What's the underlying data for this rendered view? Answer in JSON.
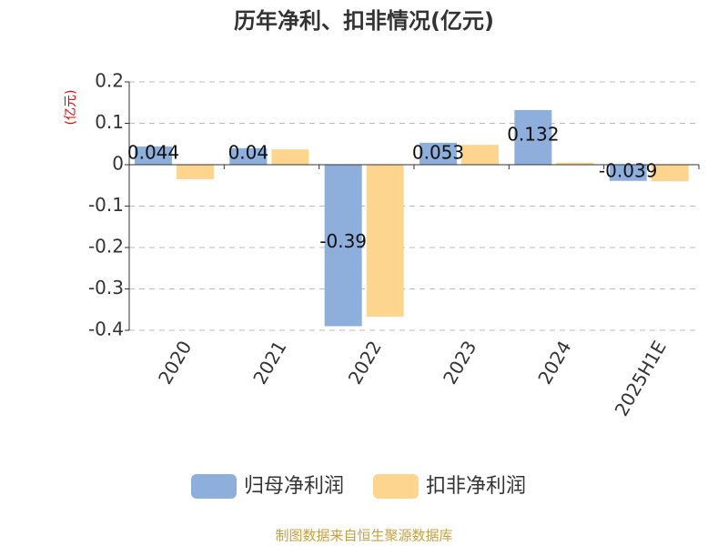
{
  "chart_data": {
    "type": "bar",
    "title": "历年净利、扣非情况(亿元)",
    "y_label": "(亿元)",
    "categories": [
      "2020",
      "2021",
      "2022",
      "2023",
      "2024",
      "2025H1E"
    ],
    "series": [
      {
        "name": "归母净利润",
        "color": "#8eaedb",
        "values": [
          0.044,
          0.04,
          -0.39,
          0.053,
          0.132,
          -0.039
        ]
      },
      {
        "name": "扣非净利润",
        "color": "#fdd58f",
        "values": [
          -0.035,
          0.037,
          -0.367,
          0.048,
          0.005,
          -0.04
        ]
      }
    ],
    "ylim": [
      -0.4,
      0.2
    ],
    "yticks": [
      0.2,
      0.1,
      0,
      -0.1,
      -0.2,
      -0.3,
      -0.4
    ],
    "grid": true,
    "legend": "bottom",
    "source": "制图数据来自恒生聚源数据库"
  }
}
